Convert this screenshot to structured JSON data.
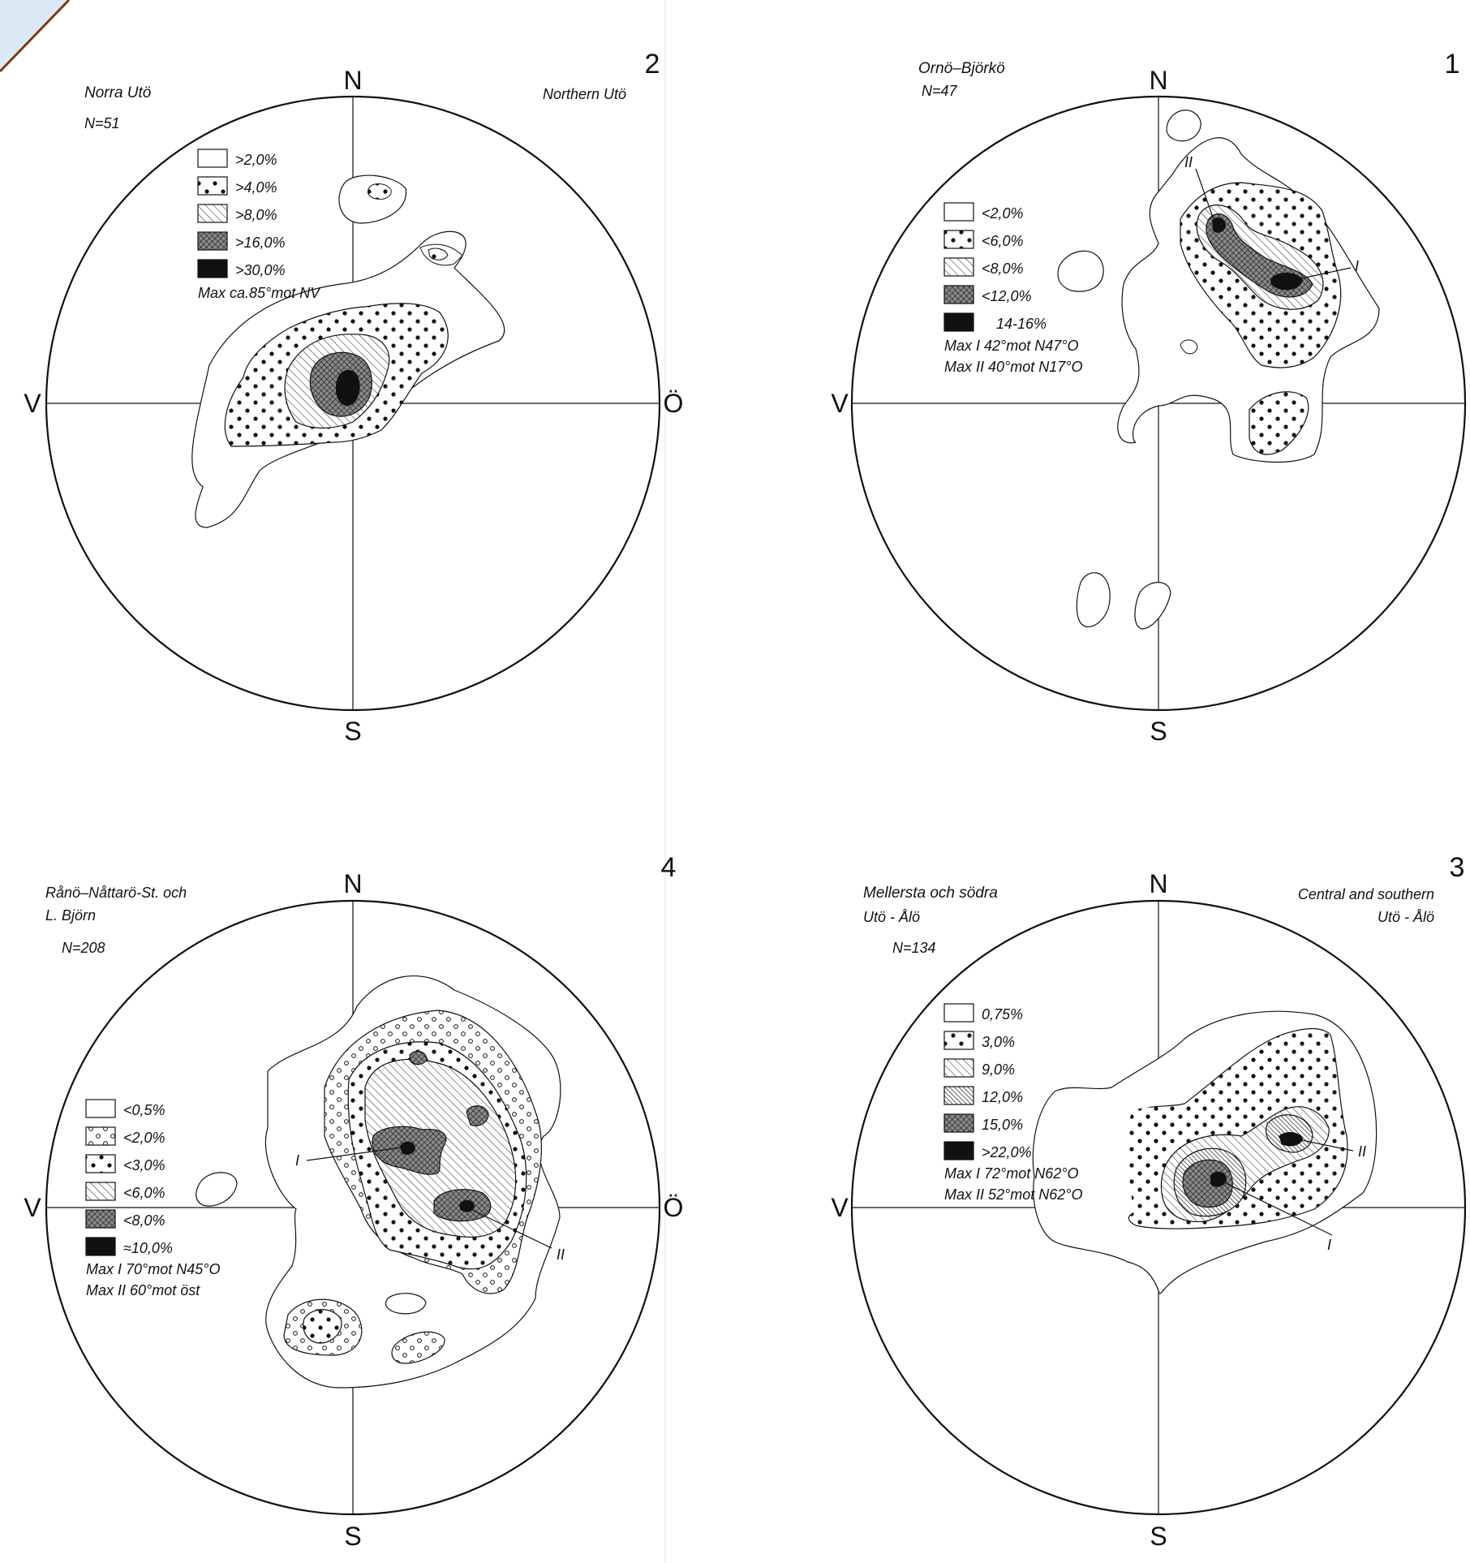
{
  "corner_accent_color": "#7a3b14",
  "panels": [
    {
      "number": "2",
      "title_lines": [
        "Norra Utö"
      ],
      "title_right_lines": [
        "Northern Utö"
      ],
      "n_label": "N=51",
      "directions": {
        "north": "N",
        "south": "S",
        "west": "V",
        "east": "Ö"
      },
      "legend": [
        {
          "pattern": "blank",
          "label": ">2,0%"
        },
        {
          "pattern": "dots",
          "label": ">4,0%"
        },
        {
          "pattern": "hatch",
          "label": ">8,0%"
        },
        {
          "pattern": "crosshatch",
          "label": ">16,0%"
        },
        {
          "pattern": "black",
          "label": ">30,0%"
        }
      ],
      "max_notes": [
        "Max ca.85°mot NV"
      ]
    },
    {
      "number": "1",
      "title_lines": [
        "Ornö–Björkö"
      ],
      "title_right_lines": [],
      "n_label": "N=47",
      "directions": {
        "north": "N",
        "south": "S",
        "west": "V",
        "east": ""
      },
      "legend": [
        {
          "pattern": "blank",
          "label": "<2,0%"
        },
        {
          "pattern": "dots",
          "label": "<6,0%"
        },
        {
          "pattern": "hatch",
          "label": "<8,0%"
        },
        {
          "pattern": "crosshatch",
          "label": "<12,0%"
        },
        {
          "pattern": "black",
          "label": "14-16%"
        }
      ],
      "max_notes": [
        "Max I 42°mot N47°O",
        "Max II 40°mot N17°O"
      ],
      "max_labels": [
        "I",
        "II"
      ]
    },
    {
      "number": "4",
      "title_lines": [
        "Rånö–Nåttarö-St. och",
        "L. Björn"
      ],
      "title_right_lines": [],
      "n_label": "N=208",
      "directions": {
        "north": "N",
        "south": "S",
        "west": "V",
        "east": "Ö"
      },
      "legend": [
        {
          "pattern": "blank",
          "label": "<0,5%"
        },
        {
          "pattern": "circles",
          "label": "<2,0%"
        },
        {
          "pattern": "dots",
          "label": "<3,0%"
        },
        {
          "pattern": "hatch",
          "label": "<6,0%"
        },
        {
          "pattern": "crosshatch",
          "label": "<8,0%"
        },
        {
          "pattern": "black",
          "label": "≈10,0%"
        }
      ],
      "max_notes": [
        "Max I 70°mot N45°O",
        "Max II 60°mot öst"
      ],
      "max_labels": [
        "I",
        "II"
      ]
    },
    {
      "number": "3",
      "title_lines": [
        "Mellersta och södra",
        "Utö - Ålö"
      ],
      "title_right_lines": [
        "Central and southern",
        "Utö - Ålö"
      ],
      "n_label": "N=134",
      "directions": {
        "north": "N",
        "south": "S",
        "west": "V",
        "east": ""
      },
      "legend": [
        {
          "pattern": "blank",
          "label": "0,75%"
        },
        {
          "pattern": "dots",
          "label": "3,0%"
        },
        {
          "pattern": "hatch",
          "label": "9,0%"
        },
        {
          "pattern": "densehatch",
          "label": "12,0%"
        },
        {
          "pattern": "crosshatch",
          "label": "15,0%"
        },
        {
          "pattern": "black",
          "label": ">22,0%"
        }
      ],
      "max_notes": [
        "Max I 72°mot N62°O",
        "Max II 52°mot N62°O"
      ],
      "max_labels": [
        "I",
        "II"
      ]
    }
  ]
}
